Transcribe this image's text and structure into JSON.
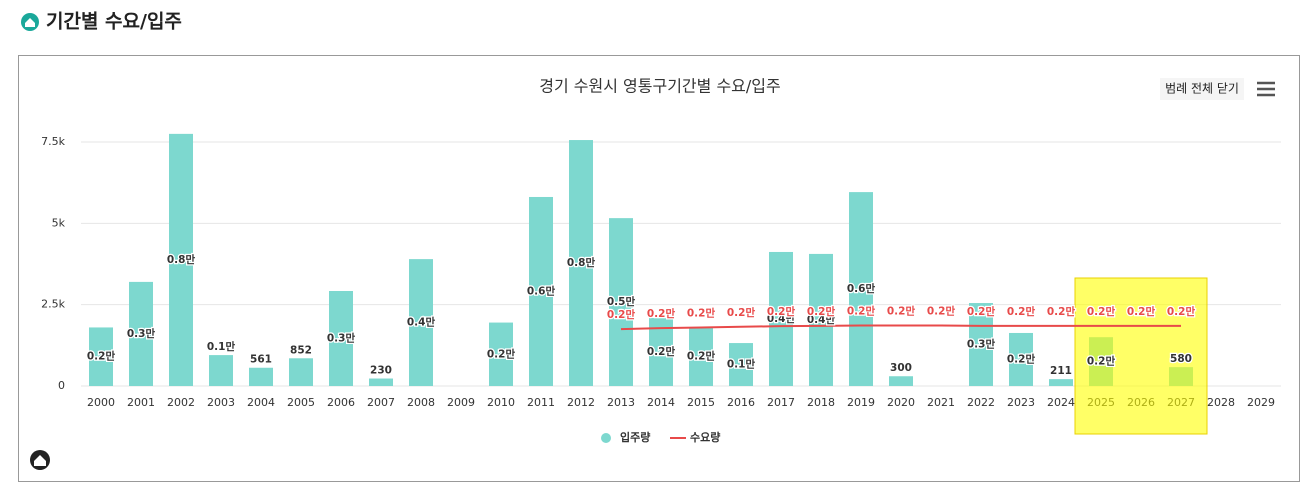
{
  "header": {
    "title": "기간별 수요/입주"
  },
  "chart_data": {
    "type": "bar",
    "title": "경기 수원시 영통구기간별 수요/입주",
    "legend_button": "범례 전체 닫기",
    "categories": [
      "2000",
      "2001",
      "2002",
      "2003",
      "2004",
      "2005",
      "2006",
      "2007",
      "2008",
      "2009",
      "2010",
      "2011",
      "2012",
      "2013",
      "2014",
      "2015",
      "2016",
      "2017",
      "2018",
      "2019",
      "2020",
      "2021",
      "2022",
      "2023",
      "2024",
      "2025",
      "2026",
      "2027",
      "2028",
      "2029"
    ],
    "ylim": [
      0,
      8200
    ],
    "yticks": [
      0,
      {
        "value": 2500,
        "label": "2.5k"
      },
      {
        "value": 5000,
        "label": "5k"
      },
      {
        "value": 7500,
        "label": "7.5k"
      }
    ],
    "grid": true,
    "legend": "bottom",
    "series": [
      {
        "name": "입주량",
        "type": "bar",
        "color": "#7dd8cf",
        "values": [
          1800,
          3200,
          7750,
          950,
          561,
          852,
          2920,
          230,
          3900,
          null,
          1950,
          5810,
          7560,
          5160,
          2090,
          1800,
          1320,
          4120,
          4060,
          5960,
          300,
          null,
          2550,
          1630,
          211,
          1500,
          null,
          580,
          null,
          null
        ],
        "value_labels": [
          "0.2만",
          "0.3만",
          "0.8만",
          "0.1만",
          "561",
          "852",
          "0.3만",
          "230",
          "0.4만",
          null,
          "0.2만",
          "0.6만",
          "0.8만",
          "0.5만",
          "0.2만",
          "0.2만",
          "0.1만",
          "0.4만",
          "0.4만",
          "0.6만",
          "300",
          null,
          "0.3만",
          "0.2만",
          "211",
          "0.2만",
          null,
          "580",
          null,
          null
        ]
      },
      {
        "name": "수요량",
        "type": "line",
        "color": "#e84a4a",
        "values": [
          null,
          null,
          null,
          null,
          null,
          null,
          null,
          null,
          null,
          null,
          null,
          null,
          null,
          1750,
          1780,
          1800,
          1820,
          1840,
          1850,
          1860,
          1860,
          1860,
          1850,
          1850,
          1850,
          1850,
          1850,
          1850,
          null,
          null
        ],
        "value_labels": [
          null,
          null,
          null,
          null,
          null,
          null,
          null,
          null,
          null,
          null,
          null,
          null,
          null,
          "0.2만",
          "0.2만",
          "0.2만",
          "0.2만",
          "0.2만",
          "0.2만",
          "0.2만",
          "0.2만",
          "0.2만",
          "0.2만",
          "0.2만",
          "0.2만",
          "0.2만",
          "0.2만",
          "0.2만",
          null,
          null
        ]
      }
    ]
  }
}
